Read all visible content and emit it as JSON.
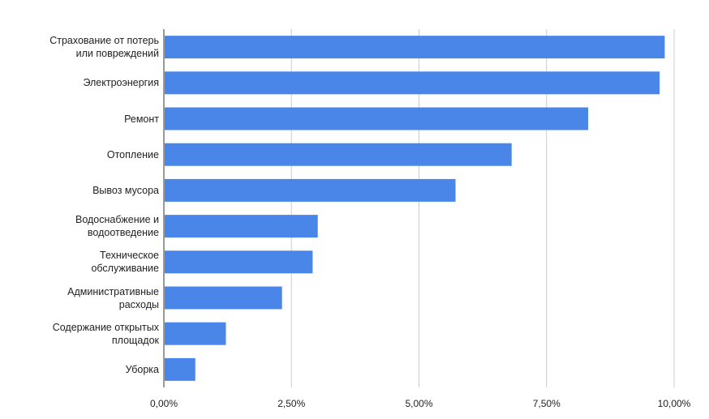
{
  "chart_data": {
    "type": "bar",
    "orientation": "horizontal",
    "categories": [
      "Страхование от потерь\nили повреждений",
      "Электроэнергия",
      "Ремонт",
      "Отопление",
      "Вывоз мусора",
      "Водоснабжение и\nводоотведение",
      "Техническое\nобслуживание",
      "Административные\nрасходы",
      "Содержание открытых\nплощадок",
      "Уборка"
    ],
    "values": [
      9.8,
      9.7,
      8.3,
      6.8,
      5.7,
      3.0,
      2.9,
      2.3,
      1.2,
      0.6
    ],
    "color": "#4a86e8",
    "xlim": [
      0,
      10
    ],
    "xticks": [
      {
        "value": 0,
        "label": "0,00%"
      },
      {
        "value": 2.5,
        "label": "2,50%"
      },
      {
        "value": 5,
        "label": "5,00%"
      },
      {
        "value": 7.5,
        "label": "7,50%"
      },
      {
        "value": 10,
        "label": "10,00%"
      }
    ],
    "grid": true
  }
}
